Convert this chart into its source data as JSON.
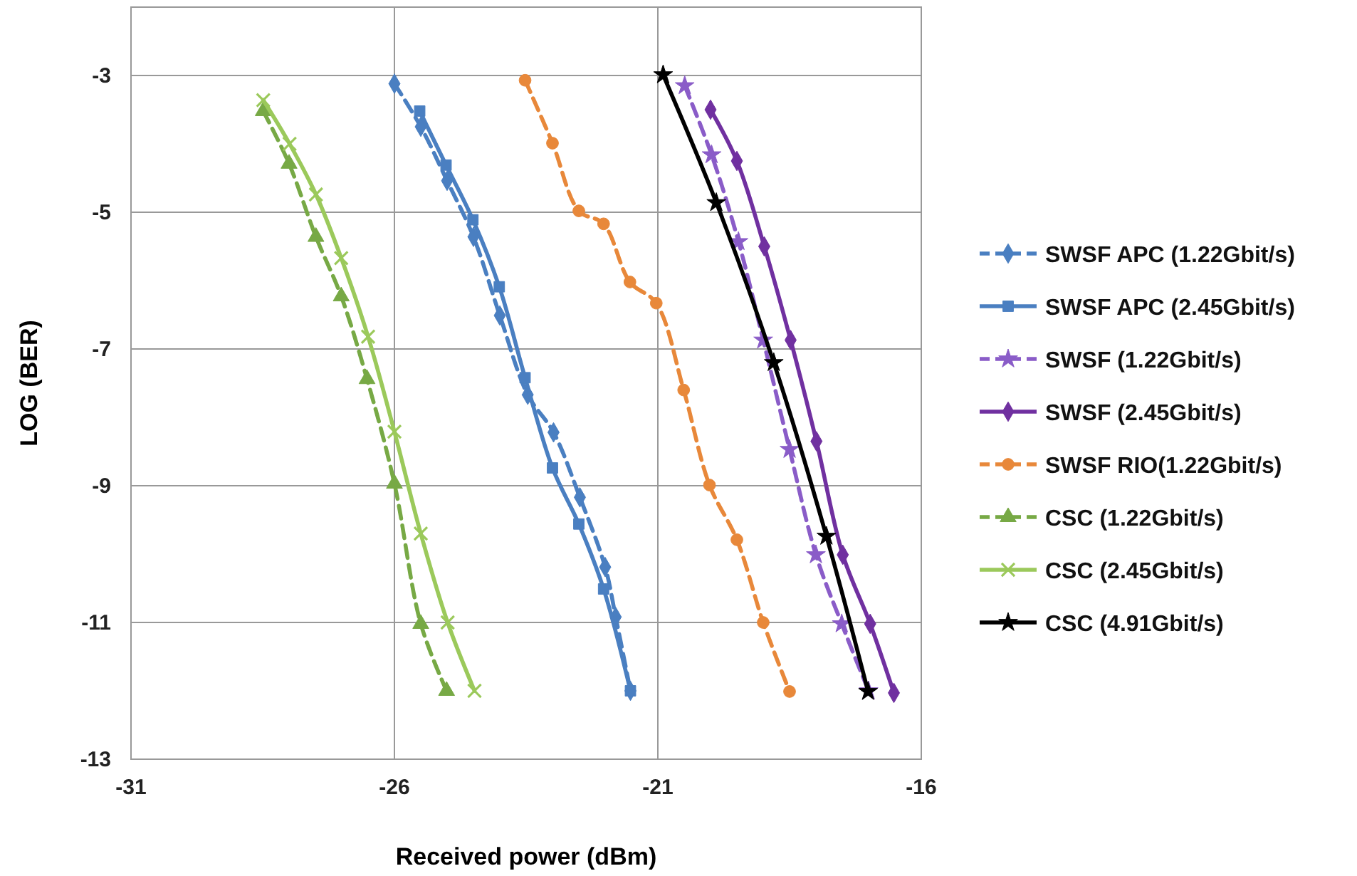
{
  "chart_data": {
    "type": "line",
    "xlabel": "Received power (dBm)",
    "ylabel": "LOG (BER)",
    "xlim": [
      -31,
      -16
    ],
    "xticks": [
      -31,
      -26,
      -21,
      -16
    ],
    "ylim": [
      -13,
      -2
    ],
    "yticks": [
      -3,
      -5,
      -7,
      -9,
      -11,
      -13
    ],
    "grid": true,
    "legend": "right",
    "series": [
      {
        "name": "SWSF APC (1.22Gbit/s)",
        "color": "#4a7fc1",
        "marker": "diamond",
        "line_style": "dashed",
        "x": [
          -26.0,
          -25.5,
          -25.0,
          -24.5,
          -24.0,
          -23.47,
          -22.98,
          -22.48,
          -22.0,
          -21.8,
          -21.52
        ],
        "values": [
          -3.12,
          -3.75,
          -4.54,
          -5.36,
          -6.51,
          -7.67,
          -8.22,
          -9.17,
          -10.19,
          -10.92,
          -12.0
        ]
      },
      {
        "name": "SWSF APC (2.45Gbit/s)",
        "color": "#4a7fc1",
        "marker": "square",
        "line_style": "solid",
        "x": [
          -25.52,
          -25.02,
          -24.51,
          -24.01,
          -23.52,
          -23.0,
          -22.5,
          -22.03,
          -21.52
        ],
        "values": [
          -3.52,
          -4.31,
          -5.11,
          -6.09,
          -7.42,
          -8.74,
          -9.56,
          -10.51,
          -12.0
        ]
      },
      {
        "name": "SWSF (1.22Gbit/s)",
        "color": "#8a5cc8",
        "marker": "star",
        "line_style": "dashed",
        "x": [
          -20.49,
          -19.98,
          -19.47,
          -19.0,
          -18.5,
          -18.0,
          -17.51,
          -17.0
        ],
        "values": [
          -3.15,
          -4.16,
          -5.43,
          -6.87,
          -8.47,
          -10.01,
          -11.02,
          -12.0
        ]
      },
      {
        "name": "SWSF (2.45Gbit/s)",
        "color": "#7030a0",
        "marker": "diamond",
        "line_style": "solid",
        "x": [
          -20.0,
          -19.5,
          -18.98,
          -18.48,
          -17.99,
          -17.49,
          -16.97,
          -16.52
        ],
        "values": [
          -3.5,
          -4.25,
          -5.5,
          -6.87,
          -8.35,
          -10.01,
          -11.02,
          -12.03
        ]
      },
      {
        "name": "SWSF RIO(1.22Gbit/s)",
        "color": "#e8883a",
        "marker": "circle",
        "line_style": "dashed",
        "x": [
          -23.52,
          -23.0,
          -22.5,
          -22.03,
          -21.53,
          -21.03,
          -20.51,
          -20.02,
          -19.5,
          -19.0,
          -18.5
        ],
        "values": [
          -3.07,
          -3.99,
          -4.98,
          -5.17,
          -6.02,
          -6.33,
          -7.6,
          -8.99,
          -9.79,
          -11.0,
          -12.01
        ]
      },
      {
        "name": "CSC (1.22Gbit/s)",
        "color": "#77a945",
        "marker": "triangle",
        "line_style": "dashed",
        "x": [
          -28.49,
          -28.0,
          -27.49,
          -27.01,
          -26.52,
          -26.0,
          -25.5,
          -25.01
        ],
        "values": [
          -3.52,
          -4.29,
          -5.36,
          -6.23,
          -7.44,
          -8.97,
          -11.02,
          -12.0
        ]
      },
      {
        "name": "CSC (2.45Gbit/s)",
        "color": "#9bc95b",
        "marker": "cross",
        "line_style": "solid",
        "x": [
          -28.49,
          -27.99,
          -27.49,
          -27.01,
          -26.5,
          -26.0,
          -25.5,
          -24.99,
          -24.48
        ],
        "values": [
          -3.36,
          -4.0,
          -4.74,
          -5.67,
          -6.82,
          -8.21,
          -9.7,
          -11.0,
          -12.0
        ]
      },
      {
        "name": "CSC (4.91Gbit/s)",
        "color": "#000000",
        "marker": "star",
        "line_style": "solid",
        "x": [
          -20.9,
          -19.89,
          -18.8,
          -17.8,
          -17.01
        ],
        "values": [
          -2.99,
          -4.86,
          -7.2,
          -9.74,
          -12.01
        ]
      }
    ]
  }
}
